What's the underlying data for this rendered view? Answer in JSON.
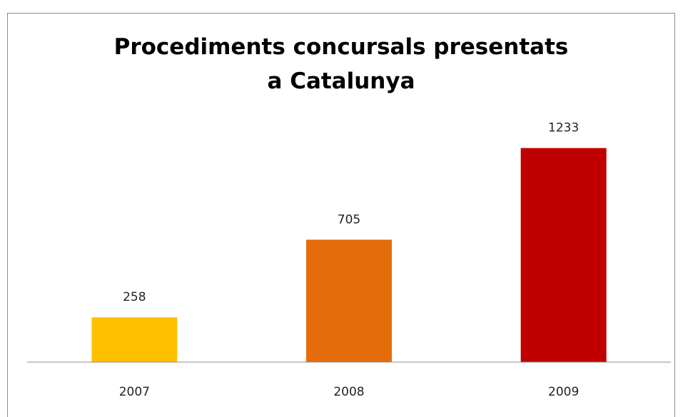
{
  "chart_data": {
    "type": "bar",
    "title": "Procediments concursals presentats a Catalunya",
    "categories": [
      "2007",
      "2008",
      "2009"
    ],
    "values": [
      258,
      705,
      1233
    ],
    "colors": [
      "#ffc000",
      "#e46c0a",
      "#c00000"
    ],
    "ylim": [
      0,
      1400
    ]
  }
}
